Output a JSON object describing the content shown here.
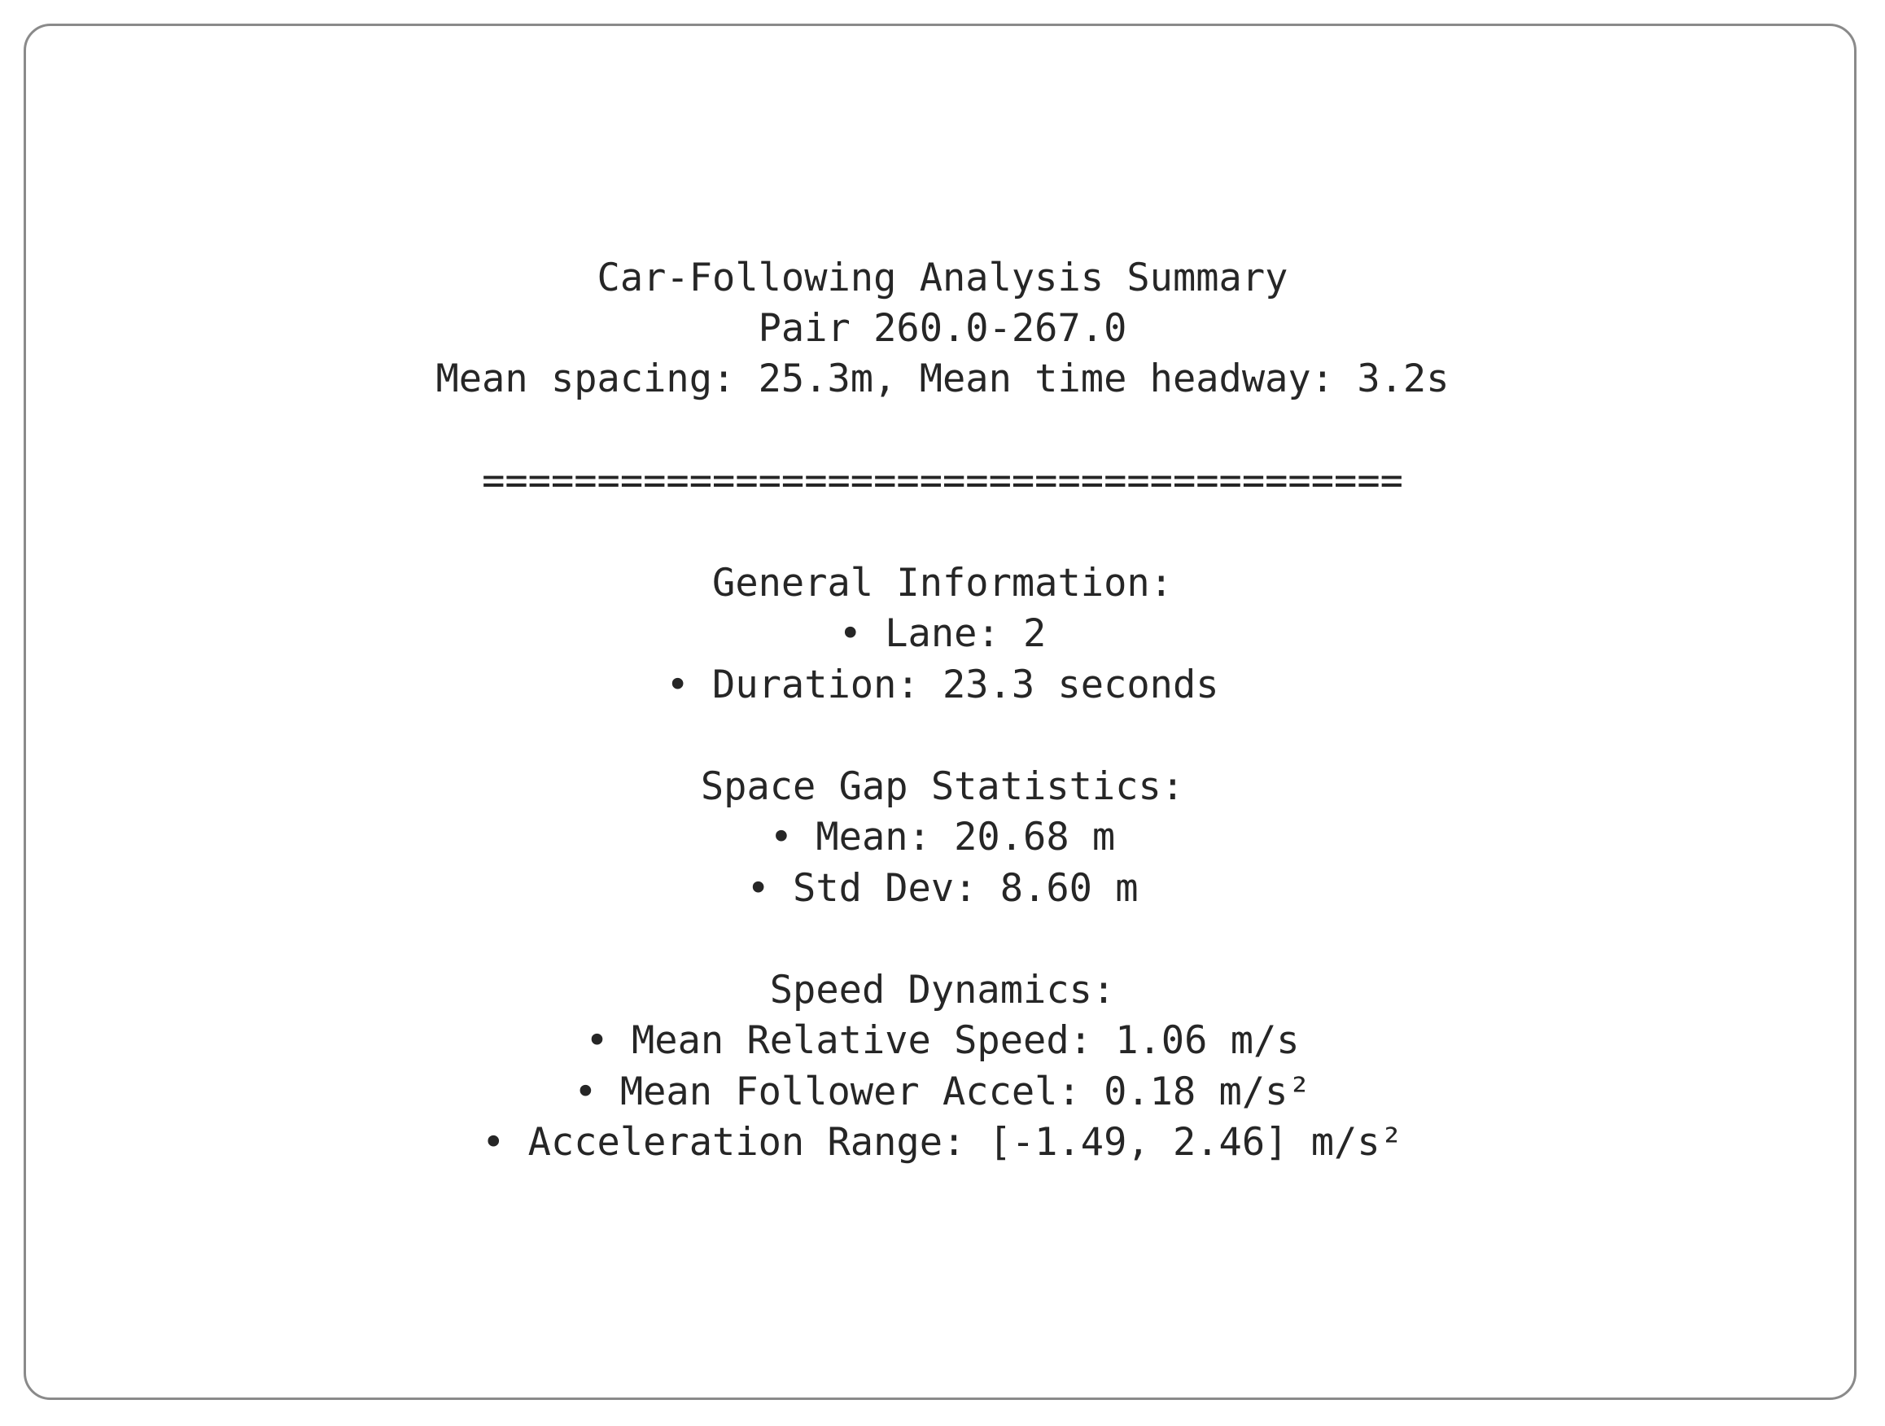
{
  "summary": {
    "title": "Car-Following Analysis Summary",
    "pair": "Pair 260.0-267.0",
    "overview": "Mean spacing: 25.3m, Mean time headway: 3.2s",
    "separator": "========================================",
    "general": {
      "heading": "General Information:",
      "lane": "• Lane: 2",
      "duration": "• Duration: 23.3 seconds"
    },
    "space_gap": {
      "heading": "Space Gap Statistics:",
      "mean": "• Mean: 20.68 m",
      "std_dev": "• Std Dev: 8.60 m"
    },
    "speed": {
      "heading": "Speed Dynamics:",
      "mean_relative_speed": "• Mean Relative Speed: 1.06 m/s",
      "mean_follower_accel": "• Mean Follower Accel: 0.18 m/s²",
      "accel_range": "• Acceleration Range: [-1.49, 2.46] m/s²"
    }
  }
}
